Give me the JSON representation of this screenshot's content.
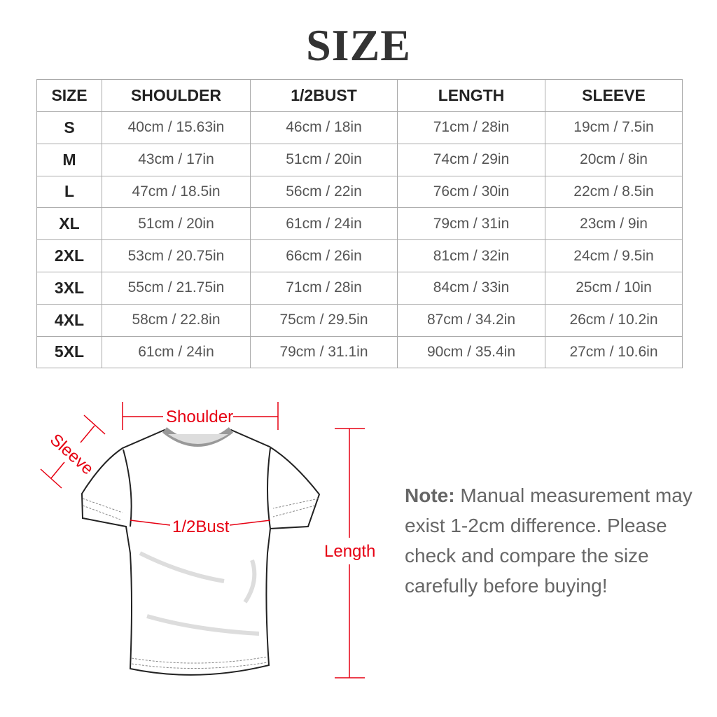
{
  "title": "SIZE",
  "table": {
    "headers": [
      "SIZE",
      "SHOULDER",
      "1/2BUST",
      "LENGTH",
      "SLEEVE"
    ],
    "rows": [
      [
        "S",
        "40cm / 15.63in",
        "46cm / 18in",
        "71cm / 28in",
        "19cm / 7.5in"
      ],
      [
        "M",
        "43cm / 17in",
        "51cm / 20in",
        "74cm / 29in",
        "20cm / 8in"
      ],
      [
        "L",
        "47cm / 18.5in",
        "56cm / 22in",
        "76cm / 30in",
        "22cm / 8.5in"
      ],
      [
        "XL",
        "51cm / 20in",
        "61cm / 24in",
        "79cm / 31in",
        "23cm / 9in"
      ],
      [
        "2XL",
        "53cm / 20.75in",
        "66cm / 26in",
        "81cm / 32in",
        "24cm / 9.5in"
      ],
      [
        "3XL",
        "55cm / 21.75in",
        "71cm / 28in",
        "84cm / 33in",
        "25cm / 10in"
      ],
      [
        "4XL",
        "58cm / 22.8in",
        "75cm / 29.5in",
        "87cm / 34.2in",
        "26cm / 10.2in"
      ],
      [
        "5XL",
        "61cm / 24in",
        "79cm / 31.1in",
        "90cm / 35.4in",
        "27cm / 10.6in"
      ]
    ]
  },
  "diagram": {
    "shoulder": "Shoulder",
    "sleeve": "Sleeve",
    "bust": "1/2Bust",
    "length": "Length",
    "annotation_color": "#e60012"
  },
  "note": {
    "label": "Note:",
    "text": "Manual measurement may exist 1-2cm difference. Please check and compare the size carefully before buying!"
  }
}
